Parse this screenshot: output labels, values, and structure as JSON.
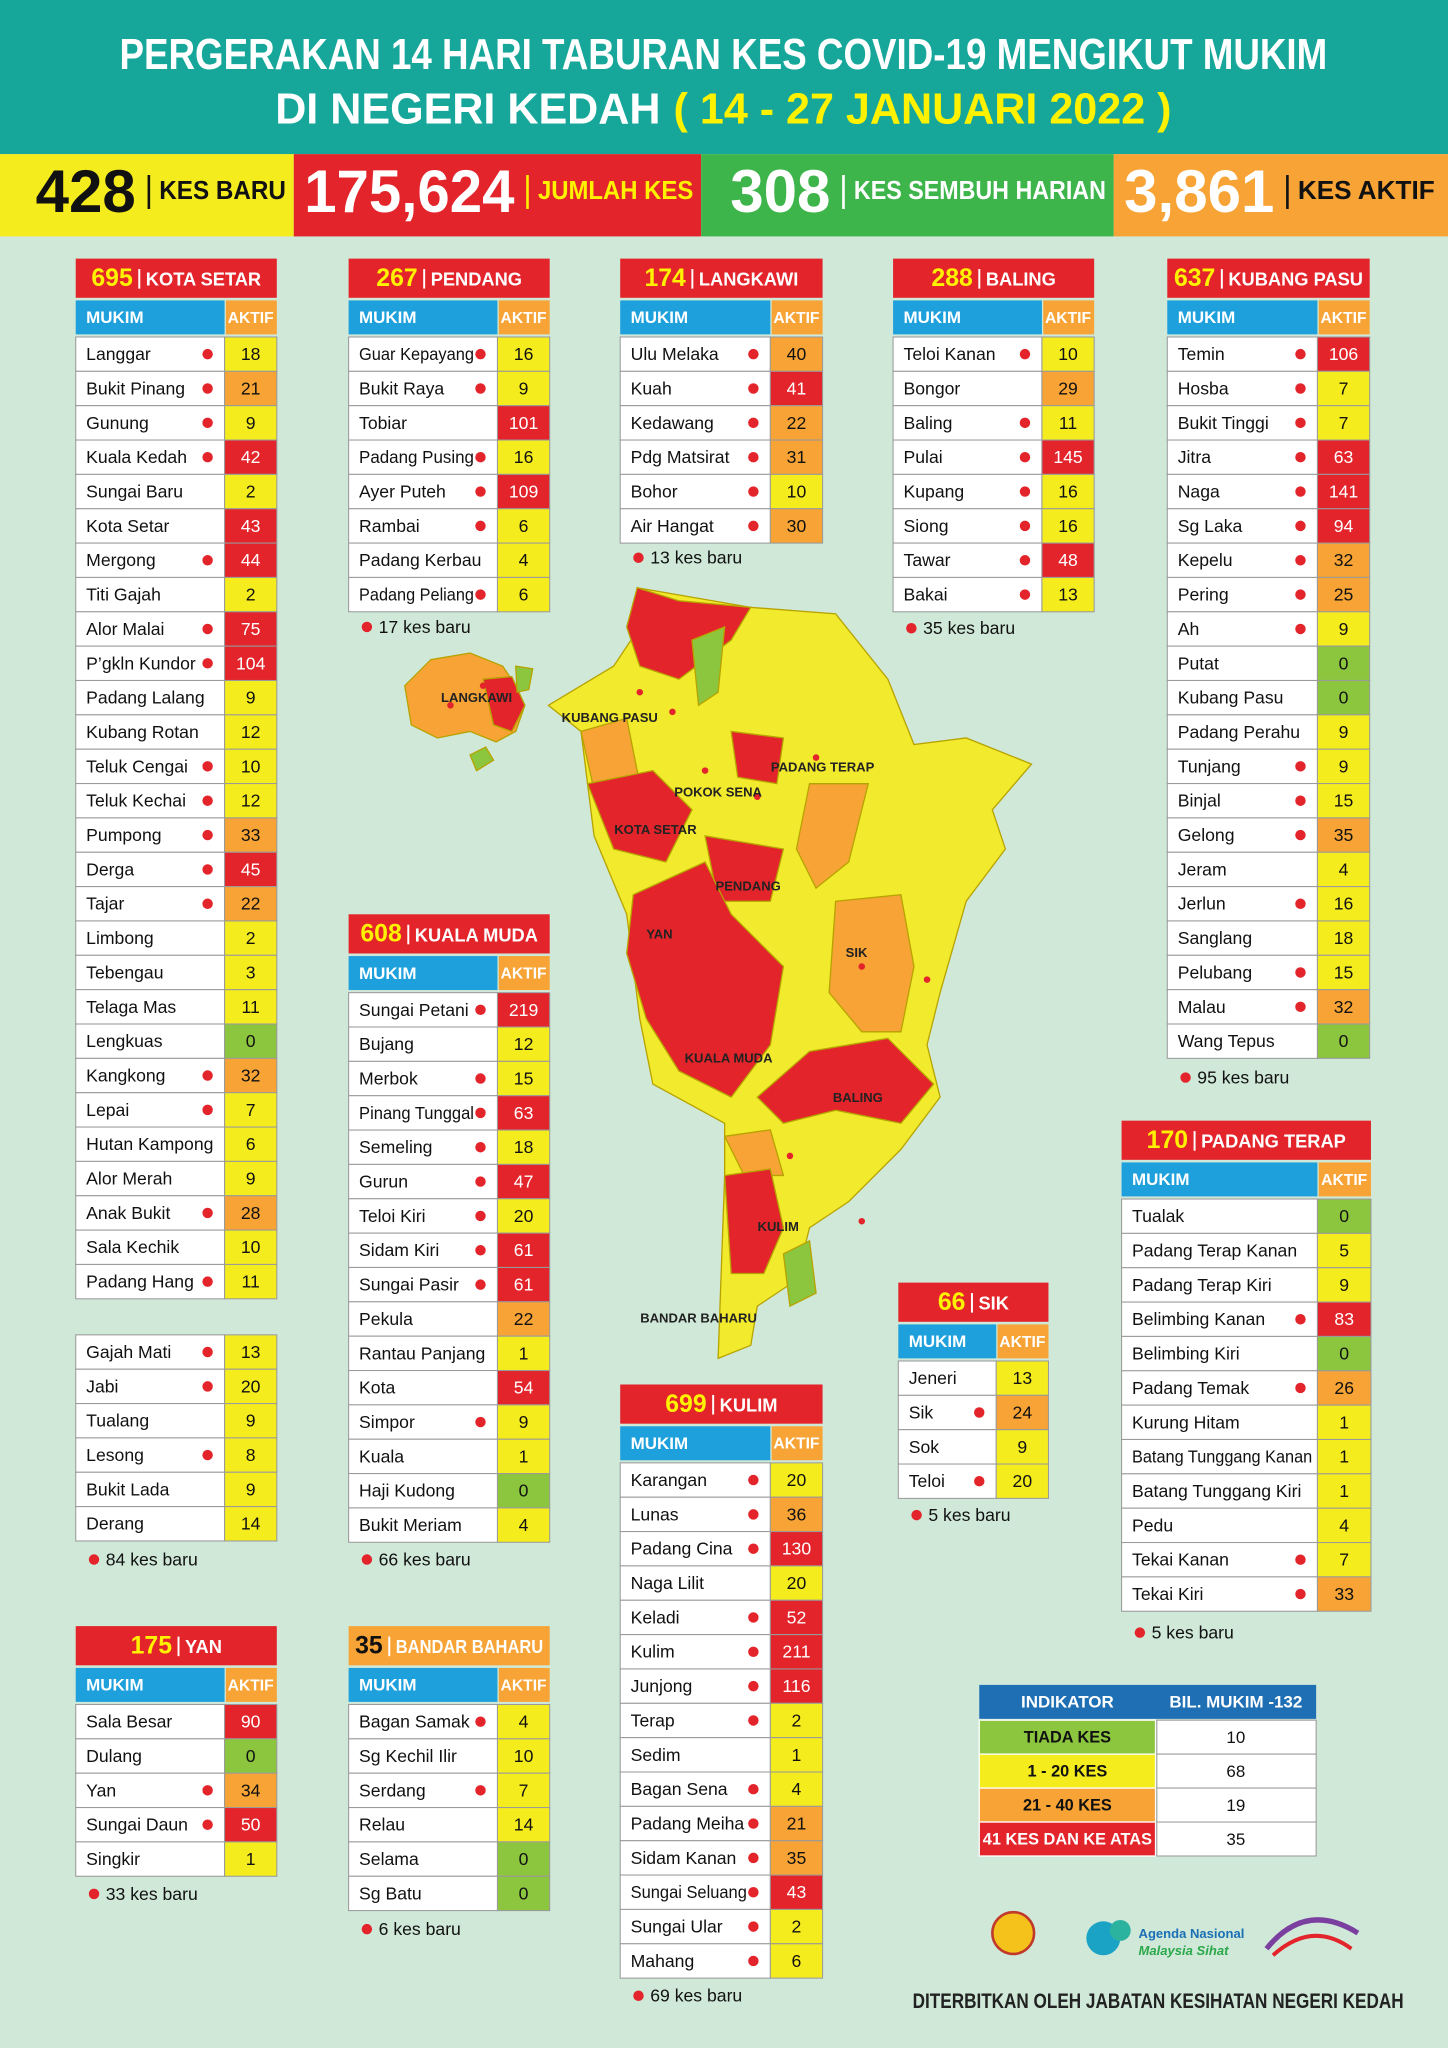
{
  "header": {
    "title_line1": "PERGERAKAN 14 HARI TABURAN KES COVID-19 MENGIKUT MUKIM",
    "title_line2": "DI NEGERI KEDAH",
    "date_range": "( 14 - 27 JANUARI 2022 )"
  },
  "stats": [
    {
      "value": "428",
      "label": "KES BARU",
      "color": "#f5ec1e",
      "value_color": "#111111",
      "label_color": "#111111"
    },
    {
      "value": "175,624",
      "label": "JUMLAH KES",
      "color": "#e3242b",
      "value_color": "#ffffff",
      "label_color": "#fff200"
    },
    {
      "value": "308",
      "label": "KES SEMBUH HARIAN",
      "color": "#3db54a",
      "value_color": "#ffffff",
      "label_color": "#ffffff"
    },
    {
      "value": "3,861",
      "label": "KES AKTIF",
      "color": "#f7a335",
      "value_color": "#ffffff",
      "label_color": "#111111"
    }
  ],
  "table_columns": [
    "MUKIM",
    "AKTIF"
  ],
  "districts": [
    {
      "total": 695,
      "name": "KOTA SETAR",
      "note": "84 kes baru",
      "rows": [
        {
          "mukim": "Langgar",
          "aktif": 18,
          "new_case": true
        },
        {
          "mukim": "Bukit Pinang",
          "aktif": 21,
          "new_case": true
        },
        {
          "mukim": "Gunung",
          "aktif": 9,
          "new_case": true
        },
        {
          "mukim": "Kuala Kedah",
          "aktif": 42,
          "new_case": true
        },
        {
          "mukim": "Sungai Baru",
          "aktif": 2,
          "new_case": false
        },
        {
          "mukim": "Kota Setar",
          "aktif": 43,
          "new_case": false
        },
        {
          "mukim": "Mergong",
          "aktif": 44,
          "new_case": true
        },
        {
          "mukim": "Titi Gajah",
          "aktif": 2,
          "new_case": false
        },
        {
          "mukim": "Alor Malai",
          "aktif": 75,
          "new_case": true
        },
        {
          "mukim": "P’gkln Kundor",
          "aktif": 104,
          "new_case": true
        },
        {
          "mukim": "Padang Lalang",
          "aktif": 9,
          "new_case": false
        },
        {
          "mukim": "Kubang Rotan",
          "aktif": 12,
          "new_case": false
        },
        {
          "mukim": "Teluk Cengai",
          "aktif": 10,
          "new_case": true
        },
        {
          "mukim": "Teluk Kechai",
          "aktif": 12,
          "new_case": true
        },
        {
          "mukim": "Pumpong",
          "aktif": 33,
          "new_case": true
        },
        {
          "mukim": "Derga",
          "aktif": 45,
          "new_case": true
        },
        {
          "mukim": "Tajar",
          "aktif": 22,
          "new_case": true
        },
        {
          "mukim": "Limbong",
          "aktif": 2,
          "new_case": false
        },
        {
          "mukim": "Tebengau",
          "aktif": 3,
          "new_case": false
        },
        {
          "mukim": "Telaga Mas",
          "aktif": 11,
          "new_case": false
        },
        {
          "mukim": "Lengkuas",
          "aktif": 0,
          "new_case": false
        },
        {
          "mukim": "Kangkong",
          "aktif": 32,
          "new_case": true
        },
        {
          "mukim": "Lepai",
          "aktif": 7,
          "new_case": true
        },
        {
          "mukim": "Hutan Kampong",
          "aktif": 6,
          "new_case": false
        },
        {
          "mukim": "Alor Merah",
          "aktif": 9,
          "new_case": false
        },
        {
          "mukim": "Anak Bukit",
          "aktif": 28,
          "new_case": true
        },
        {
          "mukim": "Sala Kechik",
          "aktif": 10,
          "new_case": false
        },
        {
          "mukim": "Padang Hang",
          "aktif": 11,
          "new_case": true
        },
        {
          "mukim": "Gajah Mati",
          "aktif": 13,
          "new_case": true
        },
        {
          "mukim": "Jabi",
          "aktif": 20,
          "new_case": true
        },
        {
          "mukim": "Tualang",
          "aktif": 9,
          "new_case": false
        },
        {
          "mukim": "Lesong",
          "aktif": 8,
          "new_case": true
        },
        {
          "mukim": "Bukit Lada",
          "aktif": 9,
          "new_case": false
        },
        {
          "mukim": "Derang",
          "aktif": 14,
          "new_case": false
        }
      ]
    },
    {
      "total": 267,
      "name": "PENDANG",
      "note": "17 kes baru",
      "rows": [
        {
          "mukim": "Guar Kepayang",
          "aktif": 16,
          "new_case": true
        },
        {
          "mukim": "Bukit Raya",
          "aktif": 9,
          "new_case": true
        },
        {
          "mukim": "Tobiar",
          "aktif": 101,
          "new_case": false
        },
        {
          "mukim": "Padang Pusing",
          "aktif": 16,
          "new_case": true
        },
        {
          "mukim": "Ayer Puteh",
          "aktif": 109,
          "new_case": true
        },
        {
          "mukim": "Rambai",
          "aktif": 6,
          "new_case": true
        },
        {
          "mukim": "Padang Kerbau",
          "aktif": 4,
          "new_case": false
        },
        {
          "mukim": "Padang Peliang",
          "aktif": 6,
          "new_case": true
        }
      ]
    },
    {
      "total": 174,
      "name": "LANGKAWI",
      "note": "13 kes baru",
      "rows": [
        {
          "mukim": "Ulu Melaka",
          "aktif": 40,
          "new_case": true
        },
        {
          "mukim": "Kuah",
          "aktif": 41,
          "new_case": true
        },
        {
          "mukim": "Kedawang",
          "aktif": 22,
          "new_case": true
        },
        {
          "mukim": "Pdg Matsirat",
          "aktif": 31,
          "new_case": true
        },
        {
          "mukim": "Bohor",
          "aktif": 10,
          "new_case": true
        },
        {
          "mukim": "Air Hangat",
          "aktif": 30,
          "new_case": true
        }
      ]
    },
    {
      "total": 288,
      "name": "BALING",
      "note": "35 kes baru",
      "rows": [
        {
          "mukim": "Teloi Kanan",
          "aktif": 10,
          "new_case": true
        },
        {
          "mukim": "Bongor",
          "aktif": 29,
          "new_case": false
        },
        {
          "mukim": "Baling",
          "aktif": 11,
          "new_case": true
        },
        {
          "mukim": "Pulai",
          "aktif": 145,
          "new_case": true
        },
        {
          "mukim": "Kupang",
          "aktif": 16,
          "new_case": true
        },
        {
          "mukim": "Siong",
          "aktif": 16,
          "new_case": true
        },
        {
          "mukim": "Tawar",
          "aktif": 48,
          "new_case": true
        },
        {
          "mukim": "Bakai",
          "aktif": 13,
          "new_case": true
        }
      ]
    },
    {
      "total": 637,
      "name": "KUBANG PASU",
      "note": "95 kes baru",
      "rows": [
        {
          "mukim": "Temin",
          "aktif": 106,
          "new_case": true
        },
        {
          "mukim": "Hosba",
          "aktif": 7,
          "new_case": true
        },
        {
          "mukim": "Bukit Tinggi",
          "aktif": 7,
          "new_case": true
        },
        {
          "mukim": "Jitra",
          "aktif": 63,
          "new_case": true
        },
        {
          "mukim": "Naga",
          "aktif": 141,
          "new_case": true
        },
        {
          "mukim": "Sg Laka",
          "aktif": 94,
          "new_case": true
        },
        {
          "mukim": "Kepelu",
          "aktif": 32,
          "new_case": true
        },
        {
          "mukim": "Pering",
          "aktif": 25,
          "new_case": true
        },
        {
          "mukim": "Ah",
          "aktif": 9,
          "new_case": true
        },
        {
          "mukim": "Putat",
          "aktif": 0,
          "new_case": false
        },
        {
          "mukim": "Kubang Pasu",
          "aktif": 0,
          "new_case": false
        },
        {
          "mukim": "Padang Perahu",
          "aktif": 9,
          "new_case": false
        },
        {
          "mukim": "Tunjang",
          "aktif": 9,
          "new_case": true
        },
        {
          "mukim": "Binjal",
          "aktif": 15,
          "new_case": true
        },
        {
          "mukim": "Gelong",
          "aktif": 35,
          "new_case": true
        },
        {
          "mukim": "Jeram",
          "aktif": 4,
          "new_case": false
        },
        {
          "mukim": "Jerlun",
          "aktif": 16,
          "new_case": true
        },
        {
          "mukim": "Sanglang",
          "aktif": 18,
          "new_case": false
        },
        {
          "mukim": "Pelubang",
          "aktif": 15,
          "new_case": true
        },
        {
          "mukim": "Malau",
          "aktif": 32,
          "new_case": true
        },
        {
          "mukim": "Wang Tepus",
          "aktif": 0,
          "new_case": false
        }
      ]
    },
    {
      "total": 608,
      "name": "KUALA MUDA",
      "note": "66 kes baru",
      "rows": [
        {
          "mukim": "Sungai Petani",
          "aktif": 219,
          "new_case": true
        },
        {
          "mukim": "Bujang",
          "aktif": 12,
          "new_case": false
        },
        {
          "mukim": "Merbok",
          "aktif": 15,
          "new_case": true
        },
        {
          "mukim": "Pinang Tunggal",
          "aktif": 63,
          "new_case": true
        },
        {
          "mukim": "Semeling",
          "aktif": 18,
          "new_case": true
        },
        {
          "mukim": "Gurun",
          "aktif": 47,
          "new_case": true
        },
        {
          "mukim": "Teloi Kiri",
          "aktif": 20,
          "new_case": true
        },
        {
          "mukim": "Sidam Kiri",
          "aktif": 61,
          "new_case": true
        },
        {
          "mukim": "Sungai Pasir",
          "aktif": 61,
          "new_case": true
        },
        {
          "mukim": "Pekula",
          "aktif": 22,
          "new_case": false
        },
        {
          "mukim": "Rantau Panjang",
          "aktif": 1,
          "new_case": false
        },
        {
          "mukim": "Kota",
          "aktif": 54,
          "new_case": false
        },
        {
          "mukim": "Simpor",
          "aktif": 9,
          "new_case": true
        },
        {
          "mukim": "Kuala",
          "aktif": 1,
          "new_case": false
        },
        {
          "mukim": "Haji Kudong",
          "aktif": 0,
          "new_case": false
        },
        {
          "mukim": "Bukit Meriam",
          "aktif": 4,
          "new_case": false
        }
      ]
    },
    {
      "total": 170,
      "name": "PADANG TERAP",
      "note": "5 kes baru",
      "rows": [
        {
          "mukim": "Tualak",
          "aktif": 0,
          "new_case": false
        },
        {
          "mukim": "Padang Terap Kanan",
          "aktif": 5,
          "new_case": false
        },
        {
          "mukim": "Padang Terap Kiri",
          "aktif": 9,
          "new_case": false
        },
        {
          "mukim": "Belimbing Kanan",
          "aktif": 83,
          "new_case": true
        },
        {
          "mukim": "Belimbing Kiri",
          "aktif": 0,
          "new_case": false
        },
        {
          "mukim": "Padang Temak",
          "aktif": 26,
          "new_case": true
        },
        {
          "mukim": "Kurung Hitam",
          "aktif": 1,
          "new_case": false
        },
        {
          "mukim": "Batang Tunggang Kanan",
          "aktif": 1,
          "new_case": false
        },
        {
          "mukim": "Batang Tunggang Kiri",
          "aktif": 1,
          "new_case": false
        },
        {
          "mukim": "Pedu",
          "aktif": 4,
          "new_case": false
        },
        {
          "mukim": "Tekai Kanan",
          "aktif": 7,
          "new_case": true
        },
        {
          "mukim": "Tekai Kiri",
          "aktif": 33,
          "new_case": true
        }
      ]
    },
    {
      "total": 66,
      "name": "SIK",
      "note": "5 kes baru",
      "rows": [
        {
          "mukim": "Jeneri",
          "aktif": 13,
          "new_case": false
        },
        {
          "mukim": "Sik",
          "aktif": 24,
          "new_case": true
        },
        {
          "mukim": "Sok",
          "aktif": 9,
          "new_case": false
        },
        {
          "mukim": "Teloi",
          "aktif": 20,
          "new_case": true
        }
      ]
    },
    {
      "total": 699,
      "name": "KULIM",
      "note": "69 kes baru",
      "rows": [
        {
          "mukim": "Karangan",
          "aktif": 20,
          "new_case": true
        },
        {
          "mukim": "Lunas",
          "aktif": 36,
          "new_case": true
        },
        {
          "mukim": "Padang Cina",
          "aktif": 130,
          "new_case": true
        },
        {
          "mukim": "Naga Lilit",
          "aktif": 20,
          "new_case": false
        },
        {
          "mukim": "Keladi",
          "aktif": 52,
          "new_case": true
        },
        {
          "mukim": "Kulim",
          "aktif": 211,
          "new_case": true
        },
        {
          "mukim": "Junjong",
          "aktif": 116,
          "new_case": true
        },
        {
          "mukim": "Terap",
          "aktif": 2,
          "new_case": true
        },
        {
          "mukim": "Sedim",
          "aktif": 1,
          "new_case": false
        },
        {
          "mukim": "Bagan Sena",
          "aktif": 4,
          "new_case": true
        },
        {
          "mukim": "Padang Meiha",
          "aktif": 21,
          "new_case": true
        },
        {
          "mukim": "Sidam Kanan",
          "aktif": 35,
          "new_case": true
        },
        {
          "mukim": "Sungai Seluang",
          "aktif": 43,
          "new_case": true
        },
        {
          "mukim": "Sungai Ular",
          "aktif": 2,
          "new_case": true
        },
        {
          "mukim": "Mahang",
          "aktif": 6,
          "new_case": true
        }
      ]
    },
    {
      "total": 175,
      "name": "YAN",
      "note": "33 kes baru",
      "rows": [
        {
          "mukim": "Sala Besar",
          "aktif": 90,
          "new_case": false
        },
        {
          "mukim": "Dulang",
          "aktif": 0,
          "new_case": false
        },
        {
          "mukim": "Yan",
          "aktif": 34,
          "new_case": true
        },
        {
          "mukim": "Sungai Daun",
          "aktif": 50,
          "new_case": true
        },
        {
          "mukim": "Singkir",
          "aktif": 1,
          "new_case": false
        }
      ]
    },
    {
      "total": 35,
      "name": "BANDAR BAHARU",
      "note": "6 kes baru",
      "rows": [
        {
          "mukim": "Bagan Samak",
          "aktif": 4,
          "new_case": true
        },
        {
          "mukim": "Sg Kechil Ilir",
          "aktif": 10,
          "new_case": false
        },
        {
          "mukim": "Serdang",
          "aktif": 7,
          "new_case": true
        },
        {
          "mukim": "Relau",
          "aktif": 14,
          "new_case": false
        },
        {
          "mukim": "Selama",
          "aktif": 0,
          "new_case": false
        },
        {
          "mukim": "Sg Batu",
          "aktif": 0,
          "new_case": false
        }
      ]
    }
  ],
  "map": {
    "labels": [
      "LANGKAWI",
      "KUBANG PASU",
      "PADANG TERAP",
      "POKOK SENA",
      "KOTA SETAR",
      "PENDANG",
      "YAN",
      "SIK",
      "KUALA MUDA",
      "BALING",
      "KULIM",
      "BANDAR BAHARU"
    ]
  },
  "legend": {
    "columns": [
      "INDIKATOR",
      "BIL. MUKIM -132"
    ],
    "rows": [
      {
        "label": "TIADA KES",
        "count": 10,
        "color": "#8cc63f"
      },
      {
        "label": "1 - 20 KES",
        "count": 68,
        "color": "#f5ec1e"
      },
      {
        "label": "21 - 40 KES",
        "count": 19,
        "color": "#f7a335"
      },
      {
        "label": "41 KES DAN KE ATAS",
        "count": 35,
        "color": "#e3242b"
      }
    ]
  },
  "footer": {
    "logo_text_1": "Agenda Nasional",
    "logo_text_2": "Malaysia Sihat",
    "publisher": "DITERBITKAN OLEH JABATAN KESIHATAN NEGERI KEDAH"
  }
}
